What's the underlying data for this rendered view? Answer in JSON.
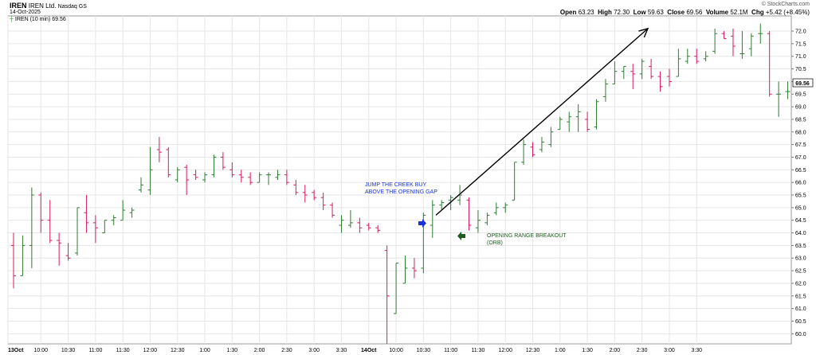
{
  "header": {
    "symbol": "IREN",
    "company": "IREN Ltd.",
    "exchange": "Nasdaq GS",
    "date": "14-Oct-2025",
    "legend": "IREN (10 min) 69.56",
    "watermark": "© StockCharts.com",
    "open_label": "Open",
    "open": "63.23",
    "high_label": "High",
    "high": "72.30",
    "low_label": "Low",
    "low": "59.63",
    "close_label": "Close",
    "close": "69.56",
    "volume_label": "Volume",
    "volume": "52.1M",
    "chg_label": "Chg",
    "chg": "+5.42 (+8.45%)"
  },
  "chart_data": {
    "type": "bar",
    "subtype": "ohlc",
    "interval": "10 min",
    "ylim": [
      59.6,
      72.6
    ],
    "y_ticks": [
      "60.0",
      "60.5",
      "61.0",
      "61.5",
      "62.0",
      "62.5",
      "63.0",
      "63.5",
      "64.0",
      "64.5",
      "65.0",
      "65.5",
      "66.0",
      "66.5",
      "67.0",
      "67.5",
      "68.0",
      "68.5",
      "69.0",
      "69.5",
      "70.0",
      "70.5",
      "71.0",
      "71.5",
      "72.0"
    ],
    "last_price_tag": "69.56",
    "x_tick_labels": [
      "13Oct",
      "10:00",
      "10:30",
      "11:00",
      "11:30",
      "12:00",
      "12:30",
      "1:00",
      "1:30",
      "2:00",
      "2:30",
      "3:00",
      "3:30",
      "14Oct",
      "10:00",
      "10:30",
      "11:00",
      "11:30",
      "12:00",
      "12:30",
      "1:00",
      "1:30",
      "2:00",
      "2:30",
      "3:00",
      "3:30"
    ],
    "grid": true,
    "colors": {
      "up": "#2e7d32",
      "down": "#d81b60",
      "grid": "#e6e6e6",
      "annotation_blue": "#1a33d6",
      "annotation_green": "#1e5c1e",
      "trend_line": "#000000"
    },
    "bars": [
      [
        63.5,
        64.0,
        61.8,
        62.3
      ],
      [
        62.3,
        63.9,
        62.3,
        63.5
      ],
      [
        63.5,
        65.8,
        62.6,
        65.5
      ],
      [
        65.5,
        65.6,
        64.0,
        64.5
      ],
      [
        64.5,
        65.3,
        63.6,
        63.7
      ],
      [
        63.7,
        64.0,
        62.7,
        63.6
      ],
      [
        63.1,
        63.6,
        62.9,
        63.0
      ],
      [
        63.2,
        65.0,
        63.1,
        65.0
      ],
      [
        64.8,
        65.5,
        64.0,
        64.4
      ],
      [
        64.4,
        64.7,
        63.6,
        64.2
      ],
      [
        64.0,
        64.5,
        64.0,
        64.5
      ],
      [
        64.5,
        64.7,
        64.3,
        64.6
      ],
      [
        64.5,
        65.3,
        64.5,
        64.9
      ],
      [
        64.8,
        65.0,
        64.6,
        64.9
      ],
      [
        65.7,
        66.2,
        65.6,
        65.9
      ],
      [
        65.7,
        67.4,
        65.5,
        66.5
      ],
      [
        67.3,
        67.8,
        66.8,
        67.2
      ],
      [
        67.3,
        67.4,
        66.2,
        66.3
      ],
      [
        66.1,
        66.6,
        66.0,
        66.5
      ],
      [
        66.6,
        66.7,
        65.5,
        66.1
      ],
      [
        66.3,
        66.5,
        66.1,
        66.2
      ],
      [
        66.1,
        66.4,
        66.0,
        66.3
      ],
      [
        66.3,
        67.1,
        66.2,
        67.0
      ],
      [
        67.0,
        67.2,
        66.5,
        66.6
      ],
      [
        66.5,
        66.8,
        66.2,
        66.3
      ],
      [
        66.3,
        66.5,
        66.0,
        66.2
      ],
      [
        66.2,
        66.4,
        65.9,
        66.0
      ],
      [
        66.0,
        66.4,
        66.0,
        66.3
      ],
      [
        66.3,
        66.4,
        65.9,
        66.3
      ],
      [
        66.2,
        66.5,
        66.1,
        66.3
      ],
      [
        66.3,
        66.5,
        65.9,
        66.0
      ],
      [
        65.9,
        66.1,
        65.5,
        65.6
      ],
      [
        65.6,
        65.9,
        65.2,
        65.5
      ],
      [
        65.6,
        65.7,
        65.3,
        65.4
      ],
      [
        65.4,
        65.6,
        64.9,
        65.1
      ],
      [
        65.1,
        65.2,
        64.6,
        64.7
      ],
      [
        64.3,
        64.7,
        64.0,
        64.5
      ],
      [
        64.3,
        64.9,
        64.2,
        64.4
      ],
      [
        64.4,
        64.6,
        64.0,
        64.2
      ],
      [
        64.3,
        64.4,
        64.1,
        64.2
      ],
      [
        64.2,
        64.3,
        64.0,
        64.1
      ],
      [
        63.3,
        63.5,
        59.6,
        61.5
      ],
      [
        60.8,
        62.8,
        60.8,
        62.8
      ],
      [
        62.0,
        63.1,
        62.0,
        62.6
      ],
      [
        62.6,
        63.0,
        62.2,
        62.5
      ],
      [
        62.6,
        64.8,
        62.4,
        64.7
      ],
      [
        64.3,
        65.3,
        63.8,
        65.1
      ],
      [
        65.1,
        65.3,
        64.9,
        65.2
      ],
      [
        65.3,
        65.5,
        64.9,
        65.4
      ],
      [
        65.3,
        65.9,
        65.1,
        65.5
      ],
      [
        65.3,
        65.4,
        64.1,
        64.3
      ],
      [
        64.2,
        64.9,
        64.0,
        64.5
      ],
      [
        64.4,
        64.8,
        64.3,
        64.7
      ],
      [
        64.8,
        65.2,
        64.7,
        65.0
      ],
      [
        65.0,
        65.2,
        64.8,
        65.1
      ],
      [
        65.3,
        66.8,
        65.3,
        66.8
      ],
      [
        66.8,
        67.7,
        66.7,
        67.5
      ],
      [
        67.4,
        67.6,
        67.0,
        67.1
      ],
      [
        67.3,
        67.8,
        67.2,
        67.6
      ],
      [
        67.5,
        68.2,
        67.4,
        68.0
      ],
      [
        68.1,
        68.6,
        68.1,
        68.5
      ],
      [
        68.4,
        68.8,
        68.0,
        68.6
      ],
      [
        68.6,
        69.1,
        68.0,
        68.8
      ],
      [
        68.5,
        68.8,
        68.0,
        68.1
      ],
      [
        68.2,
        69.3,
        68.1,
        69.2
      ],
      [
        69.4,
        70.1,
        69.2,
        69.9
      ],
      [
        69.9,
        70.8,
        69.9,
        70.4
      ],
      [
        70.4,
        70.6,
        70.1,
        70.6
      ],
      [
        70.4,
        70.7,
        69.7,
        70.3
      ],
      [
        70.3,
        70.9,
        70.1,
        70.8
      ],
      [
        70.6,
        70.9,
        70.1,
        70.2
      ],
      [
        70.2,
        70.4,
        69.6,
        69.8
      ],
      [
        70.2,
        70.5,
        69.8,
        70.0
      ],
      [
        70.2,
        71.3,
        70.2,
        70.9
      ],
      [
        70.8,
        71.3,
        70.7,
        71.0
      ],
      [
        71.0,
        71.3,
        70.7,
        70.8
      ],
      [
        70.9,
        71.2,
        70.8,
        71.0
      ],
      [
        71.2,
        72.1,
        71.1,
        71.9
      ],
      [
        71.9,
        72.0,
        71.7,
        71.7
      ],
      [
        71.8,
        72.1,
        71.0,
        71.4
      ],
      [
        71.1,
        72.0,
        70.9,
        71.1
      ],
      [
        71.3,
        71.9,
        71.0,
        71.8
      ],
      [
        71.9,
        72.3,
        71.5,
        71.9
      ],
      [
        71.9,
        72.0,
        69.4,
        69.5
      ],
      [
        69.5,
        70.0,
        68.6,
        69.5
      ],
      [
        69.6,
        70.0,
        69.3,
        69.6
      ]
    ],
    "annotations": [
      {
        "text": [
          "JUMP THE CREEK BUY",
          "ABOVE THE OPENING GAP"
        ],
        "color": "#1a33d6"
      },
      {
        "text": [
          "OPENING RANGE BREAKOUT",
          "(ORB)"
        ],
        "color": "#1e5c1e"
      }
    ]
  }
}
